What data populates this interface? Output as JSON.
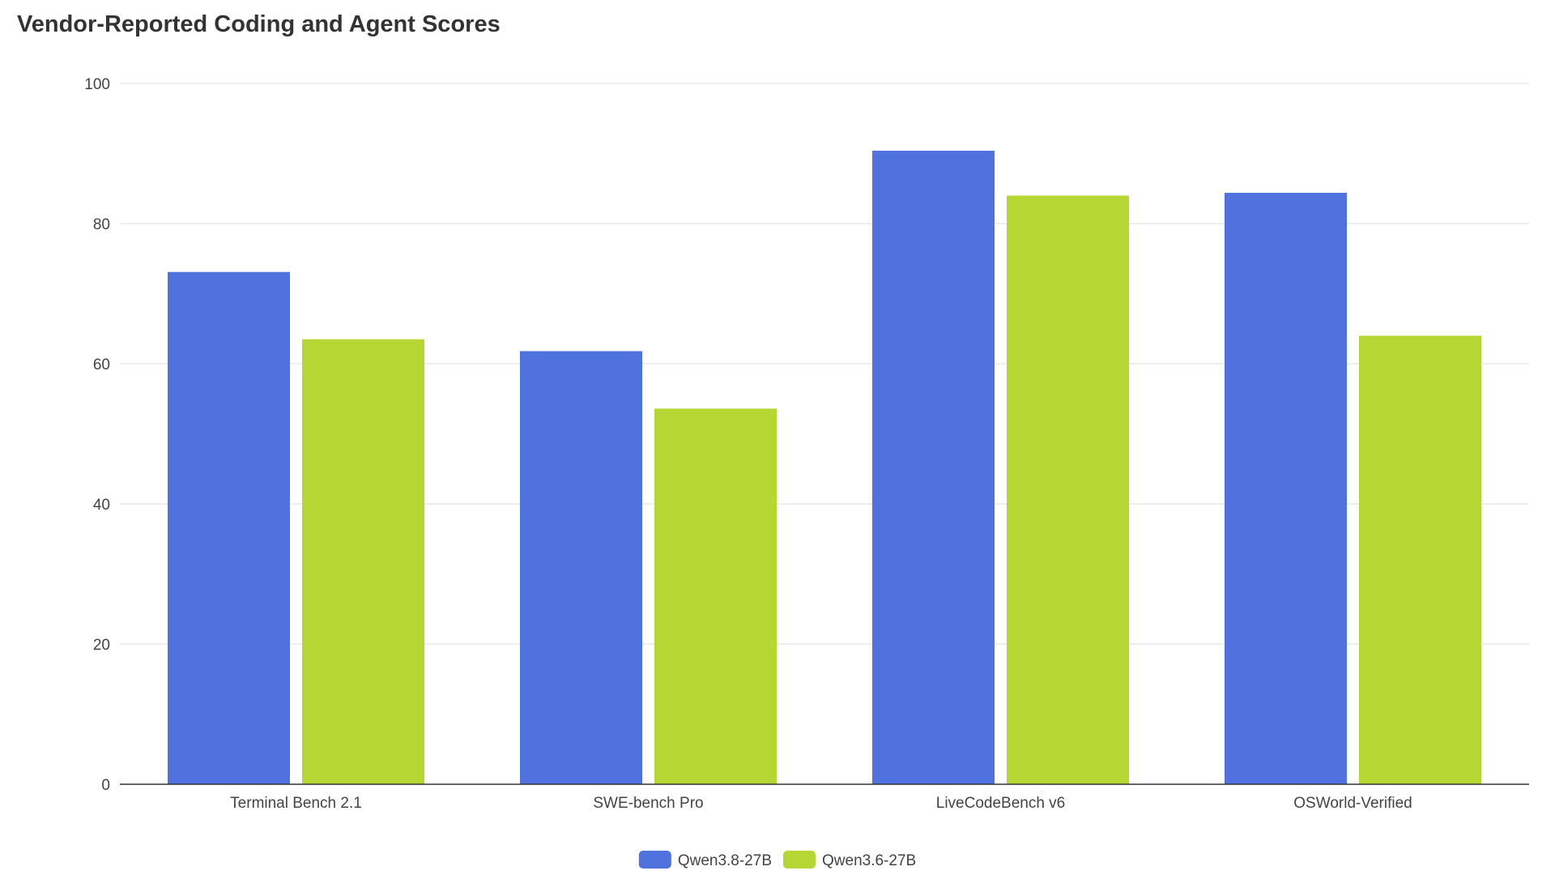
{
  "chart_data": {
    "type": "bar",
    "title": "Vendor-Reported Coding and Agent Scores",
    "xlabel": "",
    "ylabel": "",
    "categories": [
      "Terminal Bench 2.1",
      "SWE-bench Pro",
      "LiveCodeBench v6",
      "OSWorld-Verified"
    ],
    "series": [
      {
        "name": "Qwen3.8-27B",
        "color": "#5072de",
        "values": [
          73.1,
          61.8,
          90.4,
          84.4
        ]
      },
      {
        "name": "Qwen3.6-27B",
        "color": "#b6d733",
        "values": [
          63.5,
          53.6,
          84.0,
          64.0
        ]
      }
    ],
    "ylim": [
      0,
      100
    ],
    "yticks": [
      0,
      20,
      40,
      60,
      80,
      100
    ],
    "grid": true,
    "legend_position": "bottom-center"
  }
}
